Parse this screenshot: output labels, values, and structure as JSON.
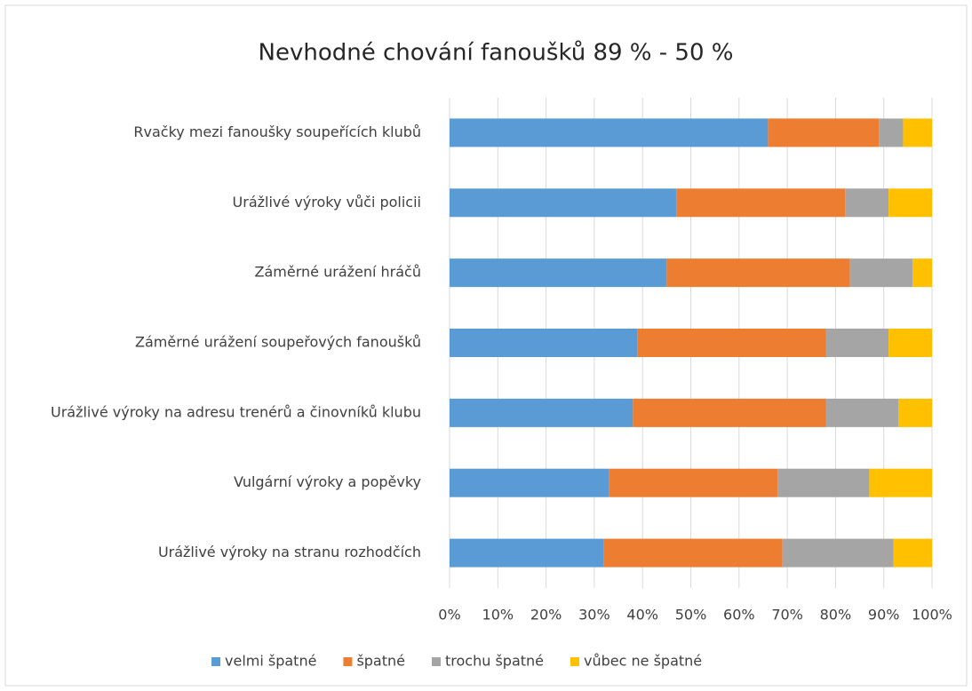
{
  "chart_data": {
    "type": "stacked-barh",
    "title": "Nevhodné chování fanoušků 89 % - 50 %",
    "categories": [
      "Rvačky mezi fanoušky soupeřících klubů",
      "Urážlivé výroky vůči policii",
      "Záměrné urážení hráčů",
      "Záměrné urážení soupeřových fanoušků",
      "Urážlivé výroky na adresu trenérů a činovníků klubu",
      "Vulgární výroky a popěvky",
      "Urážlivé výroky na stranu rozhodčích"
    ],
    "series": [
      {
        "name": "velmi špatné",
        "color": "#5b9bd5",
        "values": [
          66,
          47,
          45,
          39,
          38,
          33,
          32
        ]
      },
      {
        "name": "špatné",
        "color": "#ed7d31",
        "values": [
          23,
          35,
          38,
          39,
          40,
          35,
          37
        ]
      },
      {
        "name": "trochu špatné",
        "color": "#a5a5a5",
        "values": [
          5,
          9,
          13,
          13,
          15,
          19,
          23
        ]
      },
      {
        "name": "vůbec ne špatné",
        "color": "#ffc000",
        "values": [
          6,
          9,
          4,
          9,
          7,
          13,
          8
        ]
      }
    ],
    "xlim": [
      0,
      100
    ],
    "xticks": [
      {
        "value": 0,
        "label": "0%"
      },
      {
        "value": 10,
        "label": "10%"
      },
      {
        "value": 20,
        "label": "20%"
      },
      {
        "value": 30,
        "label": "30%"
      },
      {
        "value": 40,
        "label": "40%"
      },
      {
        "value": 50,
        "label": "50%"
      },
      {
        "value": 60,
        "label": "60%"
      },
      {
        "value": 70,
        "label": "70%"
      },
      {
        "value": 80,
        "label": "80%"
      },
      {
        "value": 90,
        "label": "90%"
      },
      {
        "value": 100,
        "label": "100%"
      }
    ],
    "grid": true,
    "legend": "bottom"
  }
}
